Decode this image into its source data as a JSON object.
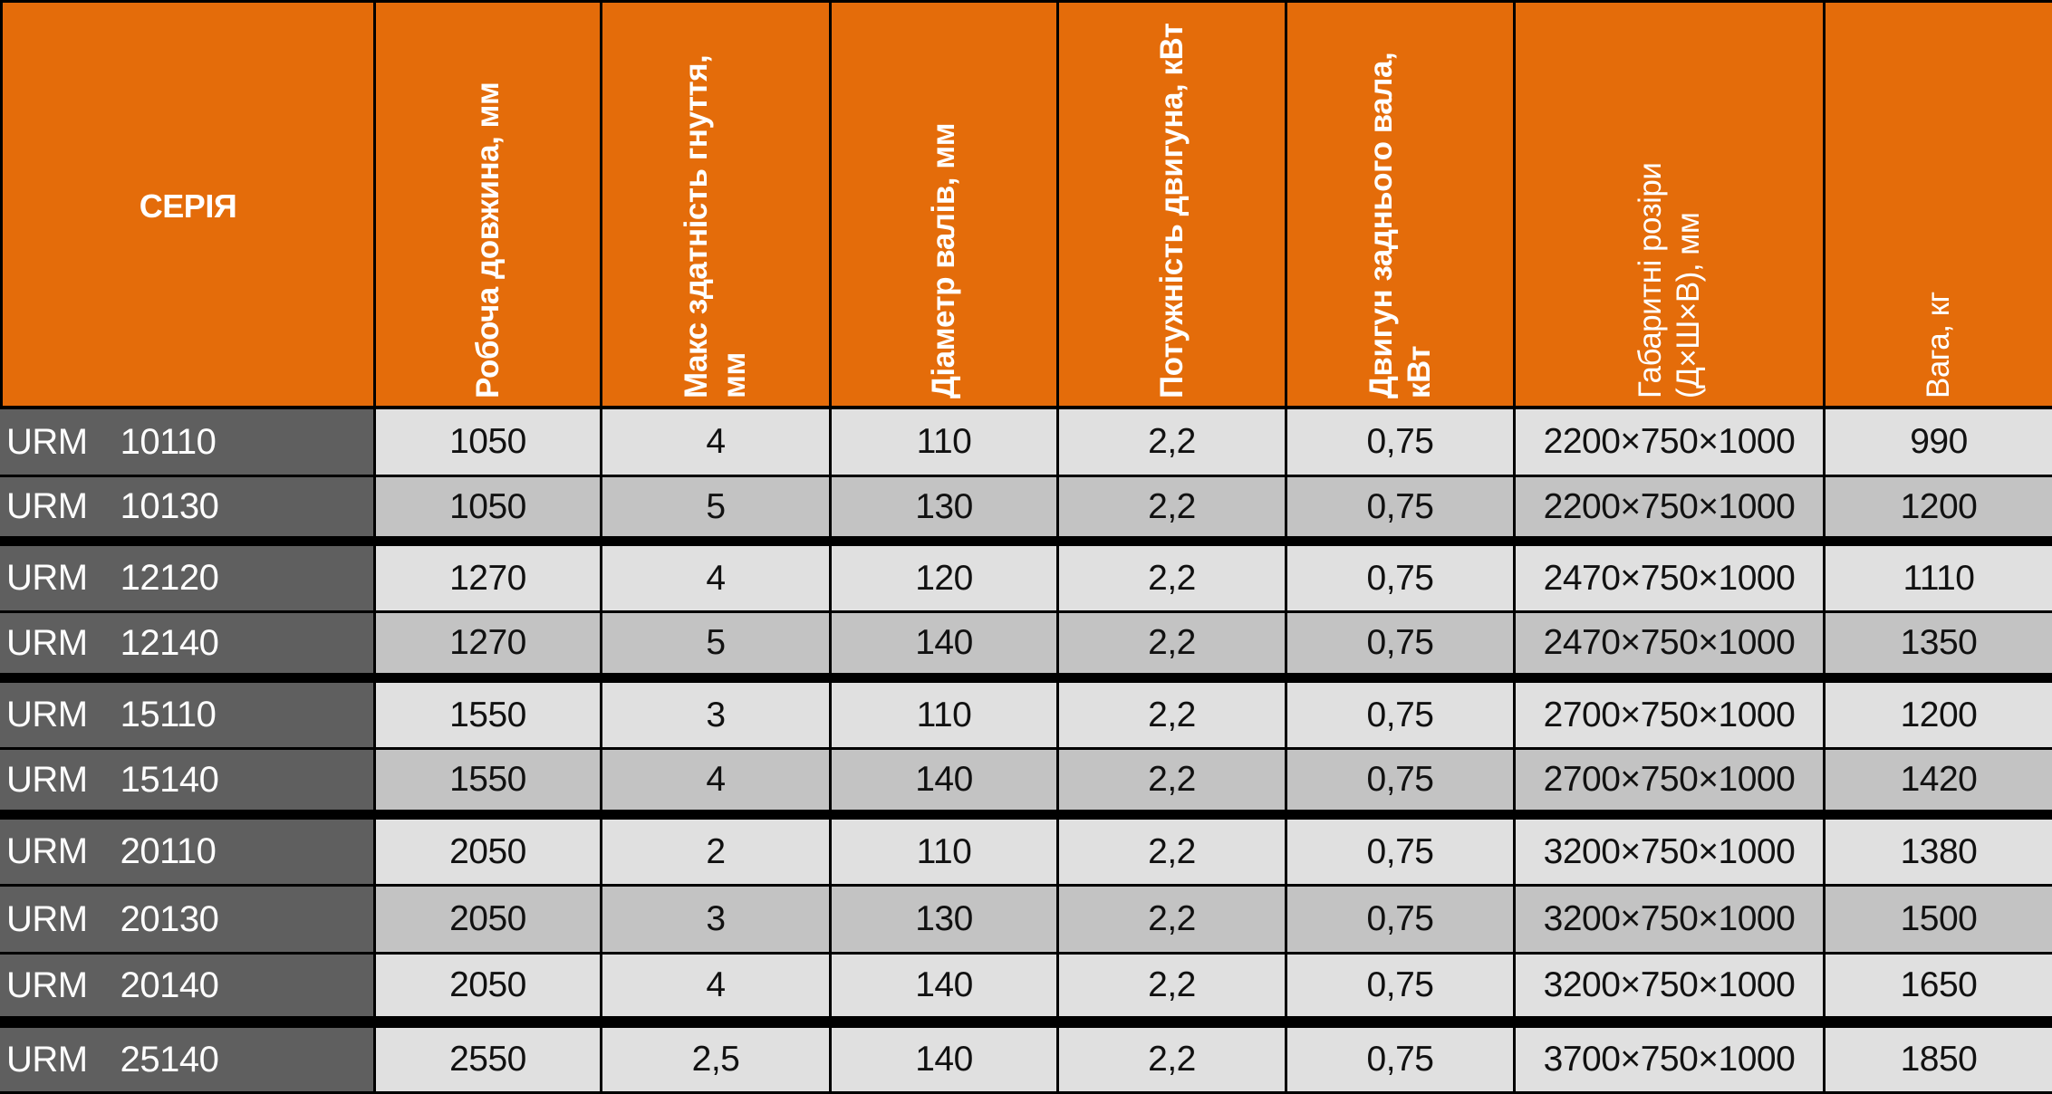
{
  "header": {
    "series": "СЕРІЯ",
    "work_length": "Робоча довжина, мм",
    "max_bend_line1": "Макс здатність гнуття,",
    "max_bend_line2": "мм",
    "roll_diameter": "Діаметр валів, мм",
    "motor_power": "Потужність двигуна, кВт",
    "rear_motor_line1": "Двигун заднього вала,",
    "rear_motor_line2": "кВт",
    "dims_line1": "Габаритні розіри",
    "dims_line2": "(Д×Ш×В), мм",
    "weight": "Вага, кг"
  },
  "rows": [
    {
      "series": "URM",
      "model": "10110",
      "length": "1050",
      "bend": "4",
      "diameter": "110",
      "power": "2,2",
      "rear": "0,75",
      "dims": "2200×750×1000",
      "weight": "990"
    },
    {
      "series": "URM",
      "model": "10130",
      "length": "1050",
      "bend": "5",
      "diameter": "130",
      "power": "2,2",
      "rear": "0,75",
      "dims": "2200×750×1000",
      "weight": "1200"
    },
    {
      "series": "URM",
      "model": "12120",
      "length": "1270",
      "bend": "4",
      "diameter": "120",
      "power": "2,2",
      "rear": "0,75",
      "dims": "2470×750×1000",
      "weight": "1110"
    },
    {
      "series": "URM",
      "model": "12140",
      "length": "1270",
      "bend": "5",
      "diameter": "140",
      "power": "2,2",
      "rear": "0,75",
      "dims": "2470×750×1000",
      "weight": "1350"
    },
    {
      "series": "URM",
      "model": "15110",
      "length": "1550",
      "bend": "3",
      "diameter": "110",
      "power": "2,2",
      "rear": "0,75",
      "dims": "2700×750×1000",
      "weight": "1200"
    },
    {
      "series": "URM",
      "model": "15140",
      "length": "1550",
      "bend": "4",
      "diameter": "140",
      "power": "2,2",
      "rear": "0,75",
      "dims": "2700×750×1000",
      "weight": "1420"
    },
    {
      "series": "URM",
      "model": "20110",
      "length": "2050",
      "bend": "2",
      "diameter": "110",
      "power": "2,2",
      "rear": "0,75",
      "dims": "3200×750×1000",
      "weight": "1380"
    },
    {
      "series": "URM",
      "model": "20130",
      "length": "2050",
      "bend": "3",
      "diameter": "130",
      "power": "2,2",
      "rear": "0,75",
      "dims": "3200×750×1000",
      "weight": "1500"
    },
    {
      "series": "URM",
      "model": "20140",
      "length": "2050",
      "bend": "4",
      "diameter": "140",
      "power": "2,2",
      "rear": "0,75",
      "dims": "3200×750×1000",
      "weight": "1650"
    },
    {
      "series": "URM",
      "model": "25140",
      "length": "2550",
      "bend": "2,5",
      "diameter": "140",
      "power": "2,2",
      "rear": "0,75",
      "dims": "3700×750×1000",
      "weight": "1850"
    }
  ],
  "colors": {
    "header_bg": "#e46c0a",
    "series_bg": "#5f5f5f",
    "row_light": "#e0e0e0",
    "row_dark": "#c3c3c3",
    "grid": "#000000"
  }
}
